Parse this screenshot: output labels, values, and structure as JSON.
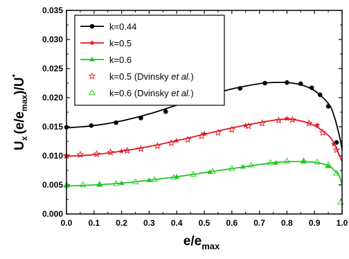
{
  "chart_data": {
    "type": "line",
    "xlabel": {
      "main": "e/e",
      "sub": "max"
    },
    "ylabel": {
      "p1": "U",
      "sub1": "x",
      "p2": "(e/e",
      "sub2": "max",
      "p3": ")/U",
      "sup": "*"
    },
    "xlim": [
      0.0,
      1.0
    ],
    "ylim": [
      0.0,
      0.035
    ],
    "x_ticks": [
      "0.0",
      "0.1",
      "0.2",
      "0.3",
      "0.4",
      "0.5",
      "0.6",
      "0.7",
      "0.8",
      "0.9",
      "1.0"
    ],
    "y_ticks": [
      "0.000",
      "0.005",
      "0.010",
      "0.015",
      "0.020",
      "0.025",
      "0.030",
      "0.035"
    ],
    "grid": false,
    "legend_position": "top-left",
    "series": [
      {
        "name": "k=0.44",
        "color": "#000000",
        "marker": "circle-filled",
        "curve_x": [
          0.0,
          0.1,
          0.2,
          0.3,
          0.4,
          0.5,
          0.6,
          0.7,
          0.75,
          0.8,
          0.85,
          0.9,
          0.95,
          0.97,
          0.99,
          1.0
        ],
        "curve_y": [
          0.0148,
          0.0152,
          0.016,
          0.0172,
          0.0187,
          0.0202,
          0.0215,
          0.0224,
          0.0226,
          0.0226,
          0.0222,
          0.0212,
          0.019,
          0.017,
          0.0135,
          0.011
        ],
        "points_x": [
          0.0,
          0.09,
          0.18,
          0.27,
          0.36,
          0.45,
          0.54,
          0.63,
          0.72,
          0.8,
          0.85,
          0.89,
          0.92,
          0.95,
          0.98
        ],
        "points_y": [
          0.0149,
          0.0152,
          0.0157,
          0.0165,
          0.0176,
          0.019,
          0.0203,
          0.0216,
          0.0225,
          0.0226,
          0.0224,
          0.0217,
          0.0205,
          0.0185,
          0.0123
        ]
      },
      {
        "name": "k=0.5",
        "color": "#e0141e",
        "marker": "star-filled",
        "curve_x": [
          0.0,
          0.1,
          0.2,
          0.3,
          0.4,
          0.5,
          0.6,
          0.7,
          0.75,
          0.8,
          0.85,
          0.9,
          0.95,
          0.97,
          1.0
        ],
        "curve_y": [
          0.0099,
          0.0102,
          0.0108,
          0.0116,
          0.0126,
          0.0137,
          0.0148,
          0.0157,
          0.0161,
          0.0163,
          0.016,
          0.0152,
          0.0135,
          0.0122,
          0.009
        ],
        "points_x": [
          0.0,
          0.2,
          0.4,
          0.5,
          0.65,
          0.8,
          0.91,
          0.97
        ],
        "points_y": [
          0.01,
          0.0108,
          0.0126,
          0.0138,
          0.0152,
          0.0164,
          0.0153,
          0.012
        ]
      },
      {
        "name": "k=0.6",
        "color": "#1cc81c",
        "marker": "triangle-filled",
        "curve_x": [
          0.0,
          0.1,
          0.2,
          0.3,
          0.4,
          0.5,
          0.6,
          0.7,
          0.75,
          0.8,
          0.85,
          0.9,
          0.95,
          0.97,
          0.99,
          1.0
        ],
        "curve_y": [
          0.0048,
          0.005,
          0.0053,
          0.0058,
          0.0064,
          0.0071,
          0.0078,
          0.0085,
          0.0088,
          0.009,
          0.009,
          0.0089,
          0.0083,
          0.0076,
          0.0065,
          0.005
        ],
        "points_x": [
          0.0,
          0.12,
          0.2,
          0.3,
          0.4,
          0.52,
          0.64,
          0.76,
          0.86,
          0.95
        ],
        "points_y": [
          0.0048,
          0.005,
          0.0053,
          0.0058,
          0.0064,
          0.0072,
          0.0081,
          0.0088,
          0.009,
          0.0082
        ]
      },
      {
        "name": "k=0.5 (Dvinsky et al.)",
        "name_parts": [
          "k=0.5 (Dvinsky ",
          "et al.",
          ")"
        ],
        "color": "#e0141e",
        "marker": "star-open",
        "points_x": [
          0.0,
          0.05,
          0.11,
          0.16,
          0.22,
          0.27,
          0.33,
          0.38,
          0.44,
          0.49,
          0.55,
          0.6,
          0.66,
          0.71,
          0.77,
          0.82,
          0.88,
          0.93,
          0.98
        ],
        "points_y": [
          0.01,
          0.0102,
          0.0103,
          0.0106,
          0.0109,
          0.0112,
          0.0117,
          0.0122,
          0.0128,
          0.0134,
          0.014,
          0.0145,
          0.0151,
          0.0156,
          0.0161,
          0.0162,
          0.0156,
          0.014,
          0.011
        ]
      },
      {
        "name": "k=0.6 (Dvinsky et al.)",
        "name_parts": [
          "k=0.6 (Dvinsky ",
          "et al.",
          ")"
        ],
        "color": "#1cc81c",
        "marker": "triangle-open",
        "points_x": [
          0.0,
          0.06,
          0.12,
          0.18,
          0.25,
          0.32,
          0.39,
          0.46,
          0.53,
          0.6,
          0.67,
          0.74,
          0.8,
          0.86,
          0.91,
          0.95,
          0.98,
          0.995
        ],
        "points_y": [
          0.005,
          0.005,
          0.0051,
          0.0052,
          0.0055,
          0.0059,
          0.0063,
          0.0068,
          0.0073,
          0.0078,
          0.0084,
          0.0088,
          0.0091,
          0.0091,
          0.0089,
          0.0084,
          0.007,
          0.002
        ]
      }
    ]
  }
}
